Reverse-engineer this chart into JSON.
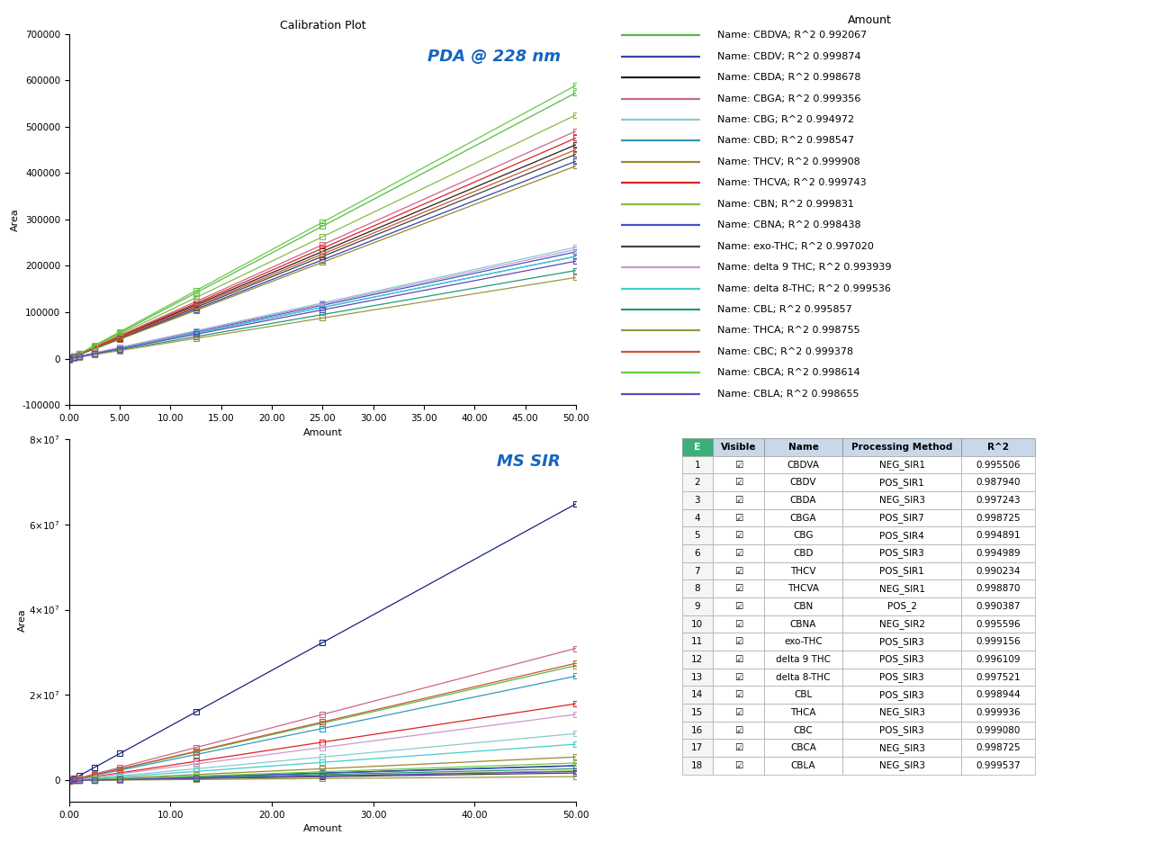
{
  "calibration_amounts": [
    0.0,
    0.5,
    1.0,
    2.5,
    5.0,
    12.5,
    25.0,
    50.0
  ],
  "pda_title": "Calibration Plot",
  "pda_label": "PDA @ 228 nm",
  "ms_label": "MS SIR",
  "xlabel": "Amount",
  "ylabel": "Area",
  "legend_title": "Amount",
  "legend_entries": [
    {
      "name": "CBDVA",
      "r2": 0.992067,
      "color": "#55bb44"
    },
    {
      "name": "CBDV",
      "r2": 0.999874,
      "color": "#3344aa"
    },
    {
      "name": "CBDA",
      "r2": 0.998678,
      "color": "#222222"
    },
    {
      "name": "CBGA",
      "r2": 0.999356,
      "color": "#cc6688"
    },
    {
      "name": "CBG",
      "r2": 0.994972,
      "color": "#88cccc"
    },
    {
      "name": "CBD",
      "r2": 0.998547,
      "color": "#3399bb"
    },
    {
      "name": "THCV",
      "r2": 0.999908,
      "color": "#998833"
    },
    {
      "name": "THCVA",
      "r2": 0.999743,
      "color": "#dd2222"
    },
    {
      "name": "CBN",
      "r2": 0.999831,
      "color": "#88bb44"
    },
    {
      "name": "CBNA",
      "r2": 0.998438,
      "color": "#4455cc"
    },
    {
      "name": "exo-THC",
      "r2": 0.99702,
      "color": "#444444"
    },
    {
      "name": "delta 9 THC",
      "r2": 0.993939,
      "color": "#cc99cc"
    },
    {
      "name": "delta 8-THC",
      "r2": 0.999536,
      "color": "#44cccc"
    },
    {
      "name": "CBL",
      "r2": 0.995857,
      "color": "#229977"
    },
    {
      "name": "THCA",
      "r2": 0.998755,
      "color": "#999944"
    },
    {
      "name": "CBC",
      "r2": 0.999378,
      "color": "#cc5533"
    },
    {
      "name": "CBCA",
      "r2": 0.998614,
      "color": "#66cc44"
    },
    {
      "name": "CBLA",
      "r2": 0.998655,
      "color": "#6644bb"
    }
  ],
  "compounds": [
    {
      "name": "CBDVA",
      "pda_slope": 11500,
      "pda_intercept": -2000,
      "ms_slope": 540000,
      "ms_intercept": -80000,
      "pda_color": "#55bb44",
      "ms_color": "#55bb44"
    },
    {
      "name": "CBDV",
      "pda_slope": 8500,
      "pda_intercept": 500,
      "ms_slope": 1300000,
      "ms_intercept": -200000,
      "pda_color": "#3344aa",
      "ms_color": "#1a237e"
    },
    {
      "name": "CBDA",
      "pda_slope": 9200,
      "pda_intercept": 1000,
      "ms_slope": 70000,
      "ms_intercept": -8000,
      "pda_color": "#222222",
      "ms_color": "#222222"
    },
    {
      "name": "CBGA",
      "pda_slope": 9800,
      "pda_intercept": 500,
      "ms_slope": 620000,
      "ms_intercept": -50000,
      "pda_color": "#cc6688",
      "ms_color": "#cc6688"
    },
    {
      "name": "CBG",
      "pda_slope": 4800,
      "pda_intercept": 200,
      "ms_slope": 220000,
      "ms_intercept": -15000,
      "pda_color": "#88cccc",
      "ms_color": "#88cccc"
    },
    {
      "name": "CBD",
      "pda_slope": 4400,
      "pda_intercept": 600,
      "ms_slope": 490000,
      "ms_intercept": -55000,
      "pda_color": "#3399bb",
      "ms_color": "#3399bb"
    },
    {
      "name": "THCV",
      "pda_slope": 8300,
      "pda_intercept": 300,
      "ms_slope": 110000,
      "ms_intercept": 0,
      "pda_color": "#998833",
      "ms_color": "#998833"
    },
    {
      "name": "THCVA",
      "pda_slope": 9500,
      "pda_intercept": 500,
      "ms_slope": 360000,
      "ms_intercept": -30000,
      "pda_color": "#dd2222",
      "ms_color": "#dd2222"
    },
    {
      "name": "CBN",
      "pda_slope": 10500,
      "pda_intercept": 200,
      "ms_slope": 45000,
      "ms_intercept": 0,
      "pda_color": "#88bb44",
      "ms_color": "#88bb44"
    },
    {
      "name": "CBNA",
      "pda_slope": 4600,
      "pda_intercept": 100,
      "ms_slope": 68000,
      "ms_intercept": -5000,
      "pda_color": "#4455cc",
      "ms_color": "#4455cc"
    },
    {
      "name": "exo-THC",
      "pda_slope": 8800,
      "pda_intercept": 400,
      "ms_slope": 35000,
      "ms_intercept": -2000,
      "pda_color": "#444444",
      "ms_color": "#444444"
    },
    {
      "name": "delta 9 THC",
      "pda_slope": 4700,
      "pda_intercept": 300,
      "ms_slope": 310000,
      "ms_intercept": -20000,
      "pda_color": "#cc99cc",
      "ms_color": "#cc99cc"
    },
    {
      "name": "delta 8-THC",
      "pda_slope": 4400,
      "pda_intercept": 200,
      "ms_slope": 170000,
      "ms_intercept": -10000,
      "pda_color": "#44cccc",
      "ms_color": "#44cccc"
    },
    {
      "name": "CBL",
      "pda_slope": 3800,
      "pda_intercept": 100,
      "ms_slope": 55000,
      "ms_intercept": -3000,
      "pda_color": "#229977",
      "ms_color": "#229977"
    },
    {
      "name": "THCA",
      "pda_slope": 3500,
      "pda_intercept": 50,
      "ms_slope": 18000,
      "ms_intercept": -1000,
      "pda_color": "#999944",
      "ms_color": "#999944"
    },
    {
      "name": "CBC",
      "pda_slope": 9000,
      "pda_intercept": 500,
      "ms_slope": 550000,
      "ms_intercept": -50000,
      "pda_color": "#cc5533",
      "ms_color": "#cc5533"
    },
    {
      "name": "CBCA",
      "pda_slope": 11800,
      "pda_intercept": -1000,
      "ms_slope": 82000,
      "ms_intercept": -5000,
      "pda_color": "#66cc44",
      "ms_color": "#66cc44"
    },
    {
      "name": "CBLA",
      "pda_slope": 4200,
      "pda_intercept": 200,
      "ms_slope": 42000,
      "ms_intercept": -2000,
      "pda_color": "#6644bb",
      "ms_color": "#6644bb"
    }
  ],
  "table_data": [
    [
      1,
      "CBDVA",
      "NEG_SIR1",
      0.995506
    ],
    [
      2,
      "CBDV",
      "POS_SIR1",
      0.98794
    ],
    [
      3,
      "CBDA",
      "NEG_SIR3",
      0.997243
    ],
    [
      4,
      "CBGA",
      "POS_SIR7",
      0.998725
    ],
    [
      5,
      "CBG",
      "POS_SIR4",
      0.994891
    ],
    [
      6,
      "CBD",
      "POS_SIR3",
      0.994989
    ],
    [
      7,
      "THCV",
      "POS_SIR1",
      0.990234
    ],
    [
      8,
      "THCVA",
      "NEG_SIR1",
      0.99887
    ],
    [
      9,
      "CBN",
      "POS_2",
      0.990387
    ],
    [
      10,
      "CBNA",
      "NEG_SIR2",
      0.995596
    ],
    [
      11,
      "exo-THC",
      "POS_SIR3",
      0.999156
    ],
    [
      12,
      "delta 9 THC",
      "POS_SIR3",
      0.996109
    ],
    [
      13,
      "delta 8-THC",
      "POS_SIR3",
      0.997521
    ],
    [
      14,
      "CBL",
      "POS_SIR3",
      0.998944
    ],
    [
      15,
      "THCA",
      "NEG_SIR3",
      0.999936
    ],
    [
      16,
      "CBC",
      "POS_SIR3",
      0.99908
    ],
    [
      17,
      "CBCA",
      "NEG_SIR3",
      0.998725
    ],
    [
      18,
      "CBLA",
      "NEG_SIR3",
      0.999537
    ]
  ],
  "pda_ylim": [
    -100000,
    700000
  ],
  "pda_xlim": [
    0.0,
    50.0
  ],
  "pda_yticks": [
    -100000,
    0,
    100000,
    200000,
    300000,
    400000,
    500000,
    600000,
    700000
  ],
  "pda_xticks": [
    0.0,
    5.0,
    10.0,
    15.0,
    20.0,
    25.0,
    30.0,
    35.0,
    40.0,
    45.0,
    50.0
  ],
  "ms_ylim": [
    -5000000,
    80000000
  ],
  "ms_xlim": [
    0.0,
    50.0
  ],
  "ms_yticks": [
    0,
    20000000,
    40000000,
    60000000,
    80000000
  ],
  "ms_xticks": [
    0.0,
    10.0,
    20.0,
    30.0,
    40.0,
    50.0
  ]
}
